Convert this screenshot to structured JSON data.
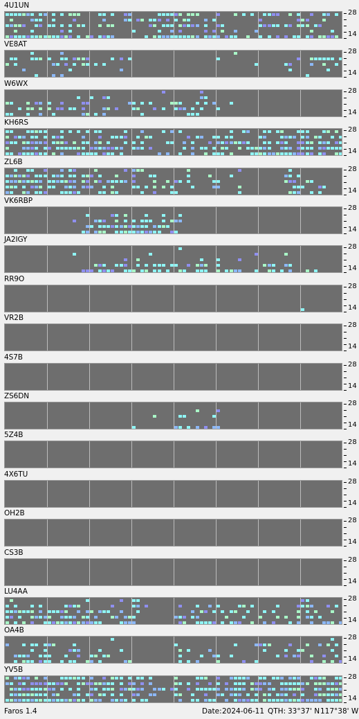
{
  "app": {
    "name": "Faros 1.4"
  },
  "status": {
    "date_label": "Date:",
    "date": "2024-06-11",
    "qth_label": "QTH:",
    "qth_lat": "33°37' N",
    "qth_lon": "117°38' W"
  },
  "axis_labels": {
    "top": "28",
    "bottom": "14"
  },
  "colors": {
    "background": "#f0f0f0",
    "grid": "#6e6e6e",
    "gridline": "#bdbdbd",
    "cyan": "#8ff5f5",
    "blue": "#8cb8f8",
    "green": "#a9f7c7",
    "violet": "#8f8ff0",
    "gray": "#909090"
  },
  "chart_data": {
    "type": "heatmap",
    "bands": [
      "28",
      "24",
      "21",
      "18",
      "14"
    ],
    "columns": 80,
    "beacons": [
      {
        "callsign": "4U1UN",
        "density": [
          0.55,
          0.3,
          0.6,
          0.2,
          0.75
        ],
        "activity": [
          0.9,
          0.6,
          0.8,
          0.7,
          0.5,
          0.3,
          0.3,
          0.4,
          0.5,
          0.7,
          0.6,
          0.5,
          0.4,
          0.3,
          0.4,
          0.5,
          0.6,
          0.7,
          0.6,
          0.5
        ]
      },
      {
        "callsign": "VE8AT",
        "density": [
          0.05,
          0.45,
          0.35,
          0.1,
          0.05
        ],
        "activity": [
          0.8,
          0.7,
          0.6,
          0.7,
          0.8,
          0.5,
          0.2,
          0.1,
          0.0,
          0.0,
          0.0,
          0.0,
          0.1,
          0.3,
          0.3,
          0.4,
          0.6,
          0.7,
          0.8,
          0.9
        ]
      },
      {
        "callsign": "W6WX",
        "density": [
          0.02,
          0.1,
          0.35,
          0.4,
          0.3
        ],
        "activity": [
          0.6,
          0.7,
          0.8,
          0.7,
          0.6,
          0.5,
          0.6,
          0.7,
          0.6,
          0.5,
          0.7,
          0.8,
          0.6,
          0.2,
          0.0,
          0.0,
          0.0,
          0.0,
          0.0,
          0.0
        ]
      },
      {
        "callsign": "KH6RS",
        "density": [
          0.4,
          0.55,
          0.5,
          0.6,
          0.5
        ],
        "activity": [
          0.9,
          0.9,
          0.8,
          0.8,
          0.7,
          0.7,
          0.6,
          0.5,
          0.4,
          0.3,
          0.3,
          0.4,
          0.5,
          0.5,
          0.6,
          0.7,
          0.8,
          0.9,
          0.9,
          0.9
        ]
      },
      {
        "callsign": "ZL6B",
        "density": [
          0.25,
          0.55,
          0.6,
          0.55,
          0.45
        ],
        "activity": [
          0.9,
          0.9,
          0.9,
          0.8,
          0.6,
          0.5,
          0.4,
          0.4,
          0.4,
          0.3,
          0.2,
          0.2,
          0.2,
          0.1,
          0.1,
          0.0,
          0.4,
          0.5,
          0.3,
          0.0
        ]
      },
      {
        "callsign": "VK6RBP",
        "density": [
          0.05,
          0.2,
          0.55,
          0.6,
          0.45
        ],
        "activity": [
          0.0,
          0.0,
          0.0,
          0.1,
          0.4,
          0.6,
          0.9,
          0.9,
          0.8,
          0.6,
          0.3,
          0.0,
          0.0,
          0.0,
          0.0,
          0.0,
          0.0,
          0.0,
          0.0,
          0.0
        ]
      },
      {
        "callsign": "JA2IGY",
        "density": [
          0.02,
          0.05,
          0.1,
          0.4,
          0.65
        ],
        "activity": [
          0.0,
          0.0,
          0.2,
          0.4,
          0.5,
          0.6,
          0.7,
          0.8,
          0.8,
          0.7,
          0.6,
          0.6,
          0.5,
          0.6,
          0.6,
          0.6,
          0.5,
          0.3,
          0.1,
          0.0
        ]
      },
      {
        "callsign": "RR9O",
        "density": [
          0.0,
          0.0,
          0.0,
          0.0,
          0.02
        ],
        "activity": [
          0.0,
          0.0,
          0.0,
          0.0,
          0.0,
          0.0,
          0.0,
          0.0,
          0.0,
          0.0,
          0.0,
          0.0,
          0.0,
          0.0,
          0.0,
          0.0,
          0.0,
          0.4,
          0.0,
          0.0
        ]
      },
      {
        "callsign": "VR2B",
        "density": [
          0.0,
          0.0,
          0.0,
          0.0,
          0.0
        ],
        "activity": [
          0.0,
          0.0,
          0.0,
          0.0,
          0.0,
          0.0,
          0.0,
          0.0,
          0.0,
          0.0,
          0.0,
          0.0,
          0.0,
          0.0,
          0.0,
          0.0,
          0.0,
          0.0,
          0.0,
          0.0
        ]
      },
      {
        "callsign": "4S7B",
        "density": [
          0.0,
          0.0,
          0.0,
          0.0,
          0.02
        ],
        "activity": [
          0.0,
          0.0,
          0.0,
          0.0,
          0.0,
          0.0,
          0.0,
          0.0,
          0.3,
          0.0,
          0.0,
          0.0,
          0.0,
          0.0,
          0.0,
          0.0,
          0.0,
          0.0,
          0.0,
          0.4
        ]
      },
      {
        "callsign": "ZS6DN",
        "density": [
          0.05,
          0.15,
          0.15,
          0.1,
          0.35
        ],
        "activity": [
          0.0,
          0.0,
          0.0,
          0.0,
          0.0,
          0.0,
          0.0,
          0.3,
          0.2,
          0.0,
          0.6,
          0.8,
          0.6,
          0.0,
          0.0,
          0.0,
          0.0,
          0.0,
          0.0,
          0.0
        ]
      },
      {
        "callsign": "5Z4B",
        "density": [
          0.0,
          0.0,
          0.0,
          0.0,
          0.0
        ],
        "activity": [
          0.0,
          0.0,
          0.0,
          0.0,
          0.0,
          0.0,
          0.0,
          0.0,
          0.0,
          0.0,
          0.0,
          0.0,
          0.0,
          0.0,
          0.0,
          0.0,
          0.0,
          0.0,
          0.0,
          0.0
        ]
      },
      {
        "callsign": "4X6TU",
        "density": [
          0.0,
          0.0,
          0.0,
          0.02,
          0.0
        ],
        "activity": [
          0.0,
          0.0,
          0.0,
          0.0,
          0.0,
          0.0,
          0.0,
          0.0,
          0.0,
          0.0,
          0.0,
          0.0,
          0.0,
          0.0,
          0.0,
          0.0,
          0.3,
          0.0,
          0.0,
          0.0
        ]
      },
      {
        "callsign": "OH2B",
        "density": [
          0.0,
          0.0,
          0.0,
          0.02,
          0.0
        ],
        "activity": [
          0.0,
          0.0,
          0.0,
          0.0,
          0.0,
          0.0,
          0.0,
          0.3,
          0.0,
          0.0,
          0.0,
          0.0,
          0.0,
          0.0,
          0.0,
          0.0,
          0.0,
          0.0,
          0.0,
          0.0
        ]
      },
      {
        "callsign": "CS3B",
        "density": [
          0.0,
          0.0,
          0.0,
          0.0,
          0.0
        ],
        "activity": [
          0.0,
          0.0,
          0.0,
          0.0,
          0.0,
          0.0,
          0.0,
          0.0,
          0.0,
          0.0,
          0.0,
          0.0,
          0.0,
          0.0,
          0.0,
          0.0,
          0.0,
          0.0,
          0.0,
          0.0
        ]
      },
      {
        "callsign": "LU4AA",
        "density": [
          0.1,
          0.35,
          0.4,
          0.45,
          0.55
        ],
        "activity": [
          0.9,
          0.9,
          0.8,
          0.8,
          0.7,
          0.6,
          0.5,
          0.5,
          0.3,
          0.0,
          0.4,
          0.7,
          0.6,
          0.6,
          0.6,
          0.5,
          0.5,
          0.6,
          0.6,
          0.5
        ]
      },
      {
        "callsign": "OA4B",
        "density": [
          0.05,
          0.3,
          0.4,
          0.45,
          0.45
        ],
        "activity": [
          0.4,
          0.6,
          0.8,
          0.8,
          0.7,
          0.6,
          0.5,
          0.4,
          0.0,
          0.0,
          0.4,
          0.5,
          0.5,
          0.4,
          0.5,
          0.4,
          0.4,
          0.5,
          0.4,
          0.5
        ]
      },
      {
        "callsign": "YV5B",
        "density": [
          0.45,
          0.55,
          0.55,
          0.55,
          0.6
        ],
        "activity": [
          0.9,
          0.9,
          0.9,
          0.8,
          0.7,
          0.7,
          0.7,
          0.6,
          0.5,
          0.5,
          0.6,
          0.7,
          0.8,
          0.8,
          0.9,
          0.9,
          0.9,
          0.9,
          0.9,
          0.9
        ]
      }
    ]
  }
}
